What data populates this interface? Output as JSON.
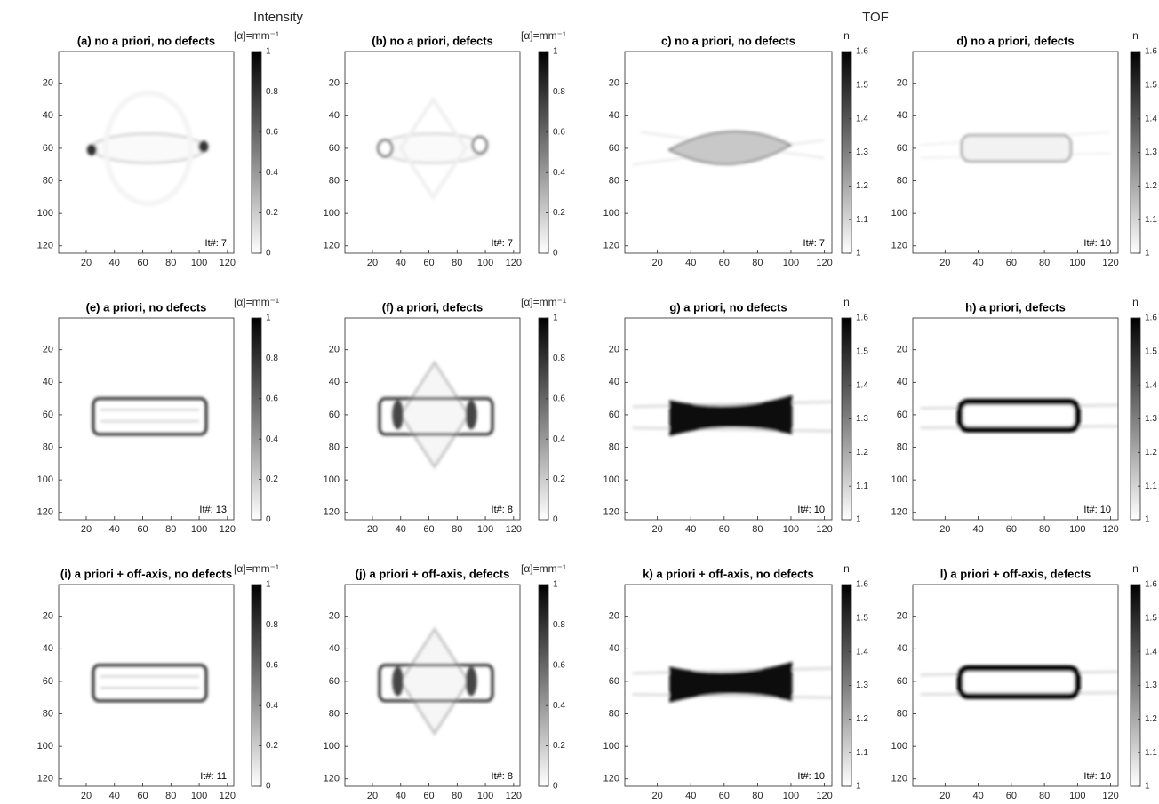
{
  "figure_titles": [
    "Intensity",
    "TOF"
  ],
  "chart_data": [
    {
      "type": "heatmap",
      "title": "(a) no a priori, no defects",
      "annotation": "It#: 7",
      "colormap": "gray_r",
      "xlim": [
        0.5,
        124.5
      ],
      "ylim": [
        124.5,
        0.5
      ],
      "xticks": [
        20,
        40,
        60,
        80,
        100,
        120
      ],
      "yticks": [
        20,
        40,
        60,
        80,
        100,
        120
      ],
      "colorbar": {
        "label": "[α]=mm⁻¹",
        "lim": [
          0,
          1
        ],
        "ticks": [
          0,
          0.2,
          0.4,
          0.6,
          0.8,
          1
        ]
      }
    },
    {
      "type": "heatmap",
      "title": "(b) no a priori, defects",
      "annotation": "It#: 7",
      "colormap": "gray_r",
      "xlim": [
        0.5,
        124.5
      ],
      "ylim": [
        124.5,
        0.5
      ],
      "xticks": [
        20,
        40,
        60,
        80,
        100,
        120
      ],
      "yticks": [
        20,
        40,
        60,
        80,
        100,
        120
      ],
      "colorbar": {
        "label": "[α]=mm⁻¹",
        "lim": [
          0,
          1
        ],
        "ticks": [
          0,
          0.2,
          0.4,
          0.6,
          0.8,
          1
        ]
      }
    },
    {
      "type": "heatmap",
      "title": "c) no a priori, no defects",
      "annotation": "It#: 7",
      "colormap": "gray_r",
      "xlim": [
        0.5,
        124.5
      ],
      "ylim": [
        124.5,
        0.5
      ],
      "xticks": [
        20,
        40,
        60,
        80,
        100,
        120
      ],
      "yticks": [
        20,
        40,
        60,
        80,
        100,
        120
      ],
      "colorbar": {
        "label": "n",
        "lim": [
          1,
          1.6
        ],
        "ticks": [
          1,
          1.1,
          1.2,
          1.3,
          1.4,
          1.5,
          1.6
        ]
      }
    },
    {
      "type": "heatmap",
      "title": "d) no a priori, defects",
      "annotation": "It#: 10",
      "colormap": "gray_r",
      "xlim": [
        0.5,
        124.5
      ],
      "ylim": [
        124.5,
        0.5
      ],
      "xticks": [
        20,
        40,
        60,
        80,
        100,
        120
      ],
      "yticks": [
        20,
        40,
        60,
        80,
        100,
        120
      ],
      "colorbar": {
        "label": "n",
        "lim": [
          1,
          1.6
        ],
        "ticks": [
          1,
          1.1,
          1.2,
          1.3,
          1.4,
          1.5,
          1.6
        ]
      }
    },
    {
      "type": "heatmap",
      "title": "(e) a priori, no defects",
      "annotation": "It#: 13",
      "colormap": "gray_r",
      "xlim": [
        0.5,
        124.5
      ],
      "ylim": [
        124.5,
        0.5
      ],
      "xticks": [
        20,
        40,
        60,
        80,
        100,
        120
      ],
      "yticks": [
        20,
        40,
        60,
        80,
        100,
        120
      ],
      "colorbar": {
        "label": "[α]=mm⁻¹",
        "lim": [
          0,
          1
        ],
        "ticks": [
          0,
          0.2,
          0.4,
          0.6,
          0.8,
          1
        ]
      }
    },
    {
      "type": "heatmap",
      "title": "(f) a priori, defects",
      "annotation": "It#: 8",
      "colormap": "gray_r",
      "xlim": [
        0.5,
        124.5
      ],
      "ylim": [
        124.5,
        0.5
      ],
      "xticks": [
        20,
        40,
        60,
        80,
        100,
        120
      ],
      "yticks": [
        20,
        40,
        60,
        80,
        100,
        120
      ],
      "colorbar": {
        "label": "[α]=mm⁻¹",
        "lim": [
          0,
          1
        ],
        "ticks": [
          0,
          0.2,
          0.4,
          0.6,
          0.8,
          1
        ]
      }
    },
    {
      "type": "heatmap",
      "title": "g) a priori, no defects",
      "annotation": "It#: 10",
      "colormap": "gray_r",
      "xlim": [
        0.5,
        124.5
      ],
      "ylim": [
        124.5,
        0.5
      ],
      "xticks": [
        20,
        40,
        60,
        80,
        100,
        120
      ],
      "yticks": [
        20,
        40,
        60,
        80,
        100,
        120
      ],
      "colorbar": {
        "label": "n",
        "lim": [
          1,
          1.6
        ],
        "ticks": [
          1,
          1.1,
          1.2,
          1.3,
          1.4,
          1.5,
          1.6
        ]
      }
    },
    {
      "type": "heatmap",
      "title": "h) a priori, defects",
      "annotation": "It#: 10",
      "colormap": "gray_r",
      "xlim": [
        0.5,
        124.5
      ],
      "ylim": [
        124.5,
        0.5
      ],
      "xticks": [
        20,
        40,
        60,
        80,
        100,
        120
      ],
      "yticks": [
        20,
        40,
        60,
        80,
        100,
        120
      ],
      "colorbar": {
        "label": "n",
        "lim": [
          1,
          1.6
        ],
        "ticks": [
          1,
          1.1,
          1.2,
          1.3,
          1.4,
          1.5,
          1.6
        ]
      }
    },
    {
      "type": "heatmap",
      "title": "(i) a priori + off-axis, no defects",
      "annotation": "It#: 11",
      "colormap": "gray_r",
      "xlim": [
        0.5,
        124.5
      ],
      "ylim": [
        124.5,
        0.5
      ],
      "xticks": [
        20,
        40,
        60,
        80,
        100,
        120
      ],
      "yticks": [
        20,
        40,
        60,
        80,
        100,
        120
      ],
      "colorbar": {
        "label": "[α]=mm⁻¹",
        "lim": [
          0,
          1
        ],
        "ticks": [
          0,
          0.2,
          0.4,
          0.6,
          0.8,
          1
        ]
      }
    },
    {
      "type": "heatmap",
      "title": "(j) a priori + off-axis, defects",
      "annotation": "It#: 8",
      "colormap": "gray_r",
      "xlim": [
        0.5,
        124.5
      ],
      "ylim": [
        124.5,
        0.5
      ],
      "xticks": [
        20,
        40,
        60,
        80,
        100,
        120
      ],
      "yticks": [
        20,
        40,
        60,
        80,
        100,
        120
      ],
      "colorbar": {
        "label": "[α]=mm⁻¹",
        "lim": [
          0,
          1
        ],
        "ticks": [
          0,
          0.2,
          0.4,
          0.6,
          0.8,
          1
        ]
      }
    },
    {
      "type": "heatmap",
      "title": "k) a priori + off-axis, no defects",
      "annotation": "It#: 10",
      "colormap": "gray_r",
      "xlim": [
        0.5,
        124.5
      ],
      "ylim": [
        124.5,
        0.5
      ],
      "xticks": [
        20,
        40,
        60,
        80,
        100,
        120
      ],
      "yticks": [
        20,
        40,
        60,
        80,
        100,
        120
      ],
      "colorbar": {
        "label": "n",
        "lim": [
          1,
          1.6
        ],
        "ticks": [
          1,
          1.1,
          1.2,
          1.3,
          1.4,
          1.5,
          1.6
        ]
      }
    },
    {
      "type": "heatmap",
      "title": "l) a priori + off-axis, defects",
      "annotation": "It#: 10",
      "colormap": "gray_r",
      "xlim": [
        0.5,
        124.5
      ],
      "ylim": [
        124.5,
        0.5
      ],
      "xticks": [
        20,
        40,
        60,
        80,
        100,
        120
      ],
      "yticks": [
        20,
        40,
        60,
        80,
        100,
        120
      ],
      "colorbar": {
        "label": "n",
        "lim": [
          1,
          1.6
        ],
        "ticks": [
          1,
          1.1,
          1.2,
          1.3,
          1.4,
          1.5,
          1.6
        ]
      }
    }
  ]
}
